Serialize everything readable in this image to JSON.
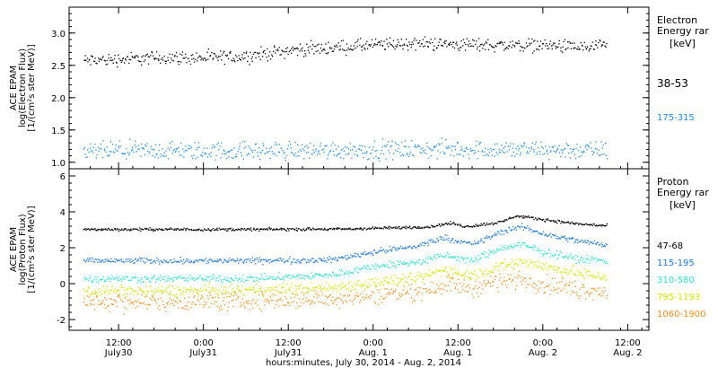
{
  "chart_data": [
    {
      "type": "scatter",
      "title": "",
      "ylabel": [
        "ACE EPAM",
        "log(Electron Flux)",
        "[1/(cm²s ster MeV)]"
      ],
      "ylim": [
        0.9,
        3.4
      ],
      "yticks": [
        1.0,
        1.5,
        2.0,
        2.5,
        3.0
      ],
      "ytick_labels": [
        "1.0",
        "1.5",
        "2.0",
        "2.5",
        "3.0"
      ],
      "legend_title": [
        "Electron",
        "Energy rar",
        "[keV]"
      ],
      "series": [
        {
          "name": "38-53",
          "color": "#000000",
          "spread": 0.05,
          "values": [
            {
              "x": "2014-07-30T07:00",
              "y": 2.58
            },
            {
              "x": "2014-07-30T12:00",
              "y": 2.6
            },
            {
              "x": "2014-07-30T18:00",
              "y": 2.63
            },
            {
              "x": "2014-07-31T00:00",
              "y": 2.62
            },
            {
              "x": "2014-07-31T06:00",
              "y": 2.65
            },
            {
              "x": "2014-07-31T12:00",
              "y": 2.74
            },
            {
              "x": "2014-07-31T18:00",
              "y": 2.78
            },
            {
              "x": "2014-08-01T00:00",
              "y": 2.82
            },
            {
              "x": "2014-08-01T06:00",
              "y": 2.85
            },
            {
              "x": "2014-08-01T12:00",
              "y": 2.83
            },
            {
              "x": "2014-08-01T18:00",
              "y": 2.82
            },
            {
              "x": "2014-08-02T00:00",
              "y": 2.82
            },
            {
              "x": "2014-08-02T06:00",
              "y": 2.78
            },
            {
              "x": "2014-08-02T09:00",
              "y": 2.8
            }
          ]
        },
        {
          "name": "175-315",
          "color": "#1e8ce0",
          "spread": 0.07,
          "values": [
            {
              "x": "2014-07-30T07:00",
              "y": 1.17
            },
            {
              "x": "2014-07-30T12:00",
              "y": 1.19
            },
            {
              "x": "2014-07-31T00:00",
              "y": 1.18
            },
            {
              "x": "2014-07-31T12:00",
              "y": 1.19
            },
            {
              "x": "2014-08-01T00:00",
              "y": 1.2
            },
            {
              "x": "2014-08-01T12:00",
              "y": 1.21
            },
            {
              "x": "2014-08-02T00:00",
              "y": 1.2
            },
            {
              "x": "2014-08-02T09:00",
              "y": 1.19
            }
          ]
        }
      ]
    },
    {
      "type": "scatter",
      "title": "",
      "ylabel": [
        "ACE EPAM",
        "log(Proton Flux)",
        "[1/(cm²s ster MeV)]"
      ],
      "ylim": [
        -2.6,
        6.4
      ],
      "yticks": [
        -2,
        0,
        2,
        4,
        6
      ],
      "ytick_labels": [
        "-2",
        "0",
        "2",
        "4",
        "6"
      ],
      "legend_title": [
        "Proton",
        "Energy rar",
        "[keV]"
      ],
      "series": [
        {
          "name": "47-68",
          "color": "#000000",
          "spread": 0.04,
          "values": [
            {
              "x": "2014-07-30T07:00",
              "y": 3.05
            },
            {
              "x": "2014-07-31T06:00",
              "y": 3.05
            },
            {
              "x": "2014-07-31T20:00",
              "y": 3.07
            },
            {
              "x": "2014-08-01T04:00",
              "y": 3.15
            },
            {
              "x": "2014-08-01T08:00",
              "y": 3.2
            },
            {
              "x": "2014-08-01T11:00",
              "y": 3.4
            },
            {
              "x": "2014-08-01T13:00",
              "y": 3.2
            },
            {
              "x": "2014-08-01T18:00",
              "y": 3.45
            },
            {
              "x": "2014-08-01T20:00",
              "y": 3.8
            },
            {
              "x": "2014-08-02T00:00",
              "y": 3.6
            },
            {
              "x": "2014-08-02T05:00",
              "y": 3.35
            },
            {
              "x": "2014-08-02T09:00",
              "y": 3.25
            }
          ]
        },
        {
          "name": "115-195",
          "color": "#1e78d2",
          "spread": 0.08,
          "values": [
            {
              "x": "2014-07-30T07:00",
              "y": 1.3
            },
            {
              "x": "2014-07-31T06:00",
              "y": 1.3
            },
            {
              "x": "2014-07-31T18:00",
              "y": 1.35
            },
            {
              "x": "2014-08-01T00:00",
              "y": 1.8
            },
            {
              "x": "2014-08-01T06:00",
              "y": 2.1
            },
            {
              "x": "2014-08-01T10:00",
              "y": 2.6
            },
            {
              "x": "2014-08-01T14:00",
              "y": 2.2
            },
            {
              "x": "2014-08-01T18:00",
              "y": 2.9
            },
            {
              "x": "2014-08-01T21:00",
              "y": 3.2
            },
            {
              "x": "2014-08-02T00:00",
              "y": 2.8
            },
            {
              "x": "2014-08-02T05:00",
              "y": 2.4
            },
            {
              "x": "2014-08-02T09:00",
              "y": 2.2
            }
          ]
        },
        {
          "name": "310-580",
          "color": "#30e0d0",
          "spread": 0.1,
          "values": [
            {
              "x": "2014-07-30T07:00",
              "y": 0.3
            },
            {
              "x": "2014-07-31T06:00",
              "y": 0.3
            },
            {
              "x": "2014-07-31T18:00",
              "y": 0.5
            },
            {
              "x": "2014-08-01T00:00",
              "y": 1.0
            },
            {
              "x": "2014-08-01T06:00",
              "y": 1.2
            },
            {
              "x": "2014-08-01T10:00",
              "y": 1.6
            },
            {
              "x": "2014-08-01T14:00",
              "y": 1.3
            },
            {
              "x": "2014-08-01T18:00",
              "y": 2.0
            },
            {
              "x": "2014-08-01T21:00",
              "y": 2.2
            },
            {
              "x": "2014-08-02T00:00",
              "y": 1.8
            },
            {
              "x": "2014-08-02T05:00",
              "y": 1.4
            },
            {
              "x": "2014-08-02T09:00",
              "y": 1.3
            }
          ]
        },
        {
          "name": "795-1193",
          "color": "#d2e600",
          "spread": 0.15,
          "values": [
            {
              "x": "2014-07-30T07:00",
              "y": -0.4
            },
            {
              "x": "2014-07-31T06:00",
              "y": -0.35
            },
            {
              "x": "2014-07-31T18:00",
              "y": -0.2
            },
            {
              "x": "2014-08-01T00:00",
              "y": 0.1
            },
            {
              "x": "2014-08-01T06:00",
              "y": 0.3
            },
            {
              "x": "2014-08-01T10:00",
              "y": 0.8
            },
            {
              "x": "2014-08-01T14:00",
              "y": 0.5
            },
            {
              "x": "2014-08-01T18:00",
              "y": 1.0
            },
            {
              "x": "2014-08-01T21:00",
              "y": 1.3
            },
            {
              "x": "2014-08-02T00:00",
              "y": 1.0
            },
            {
              "x": "2014-08-02T05:00",
              "y": 0.6
            },
            {
              "x": "2014-08-02T09:00",
              "y": 0.4
            }
          ]
        },
        {
          "name": "1060-1900",
          "color": "#f09020",
          "spread": 0.25,
          "values": [
            {
              "x": "2014-07-30T07:00",
              "y": -1.0
            },
            {
              "x": "2014-07-31T06:00",
              "y": -0.95
            },
            {
              "x": "2014-07-31T18:00",
              "y": -0.8
            },
            {
              "x": "2014-08-01T00:00",
              "y": -0.6
            },
            {
              "x": "2014-08-01T06:00",
              "y": -0.4
            },
            {
              "x": "2014-08-01T10:00",
              "y": 0.0
            },
            {
              "x": "2014-08-01T14:00",
              "y": -0.2
            },
            {
              "x": "2014-08-01T18:00",
              "y": 0.2
            },
            {
              "x": "2014-08-01T21:00",
              "y": 0.3
            },
            {
              "x": "2014-08-02T00:00",
              "y": 0.0
            },
            {
              "x": "2014-08-02T05:00",
              "y": -0.3
            },
            {
              "x": "2014-08-02T09:00",
              "y": -0.4
            }
          ]
        }
      ]
    }
  ],
  "x_axis": {
    "start": "2014-07-30T05:00",
    "end": "2014-08-02T15:00",
    "major_ticks": [
      {
        "x": "2014-07-30T12:00",
        "line1": "12:00",
        "line2": "July30"
      },
      {
        "x": "2014-07-31T00:00",
        "line1": "0:00",
        "line2": "July31"
      },
      {
        "x": "2014-07-31T12:00",
        "line1": "12:00",
        "line2": "July31"
      },
      {
        "x": "2014-08-01T00:00",
        "line1": "0:00",
        "line2": "Aug. 1"
      },
      {
        "x": "2014-08-01T12:00",
        "line1": "12:00",
        "line2": "Aug. 1"
      },
      {
        "x": "2014-08-02T00:00",
        "line1": "0:00",
        "line2": "Aug. 2"
      },
      {
        "x": "2014-08-02T12:00",
        "line1": "12:00",
        "line2": "Aug. 2"
      }
    ],
    "label": "hours:minutes, July 30, 2014 - Aug.  2, 2014"
  }
}
